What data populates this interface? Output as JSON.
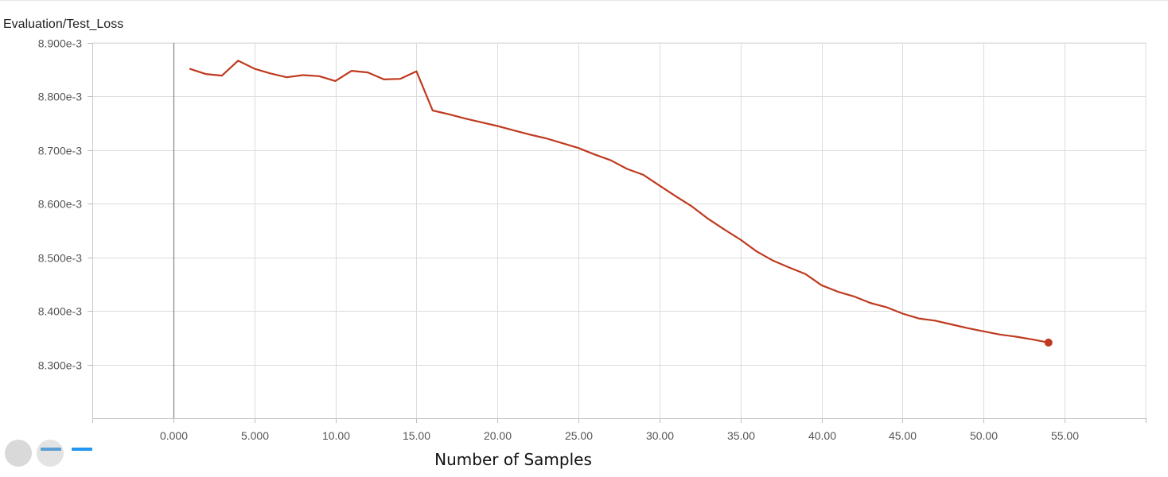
{
  "title": "Evaluation/Test_Loss",
  "chart_data": {
    "type": "line",
    "title": "Evaluation/Test_Loss",
    "xlabel": "Number of Samples",
    "ylabel": "",
    "xlim": [
      -5,
      60
    ],
    "ylim": [
      0.0082,
      0.0089
    ],
    "x_ticks": [
      0,
      5,
      10,
      15,
      20,
      25,
      30,
      35,
      40,
      45,
      50,
      55
    ],
    "x_tick_labels": [
      "0.000",
      "5.000",
      "10.00",
      "15.00",
      "20.00",
      "25.00",
      "30.00",
      "35.00",
      "40.00",
      "45.00",
      "50.00",
      "55.00"
    ],
    "y_ticks": [
      0.0083,
      0.0084,
      0.0085,
      0.0086,
      0.0087,
      0.0088,
      0.0089
    ],
    "y_tick_labels": [
      "8.300e-3",
      "8.400e-3",
      "8.500e-3",
      "8.600e-3",
      "8.700e-3",
      "8.800e-3",
      "8.900e-3"
    ],
    "grid": true,
    "line_color": "#bf3a1f",
    "series": [
      {
        "x": [
          1,
          2,
          3,
          4,
          5,
          6,
          7,
          8,
          9,
          10,
          11,
          12,
          13,
          14,
          15,
          16,
          17,
          18,
          19,
          20,
          21,
          22,
          23,
          24,
          25,
          26,
          27,
          28,
          29,
          30,
          31,
          32,
          33,
          34,
          35,
          36,
          37,
          38,
          39,
          40,
          41,
          42,
          43,
          44,
          45,
          46,
          47,
          48,
          49,
          50,
          51,
          52,
          53,
          54
        ],
        "values": [
          0.008852,
          0.008842,
          0.008839,
          0.008867,
          0.008852,
          0.008843,
          0.008836,
          0.00884,
          0.008838,
          0.008829,
          0.008848,
          0.008845,
          0.008832,
          0.008833,
          0.008847,
          0.008774,
          0.008767,
          0.008759,
          0.008752,
          0.008745,
          0.008737,
          0.008729,
          0.008722,
          0.008713,
          0.008704,
          0.008692,
          0.008681,
          0.008665,
          0.008654,
          0.008634,
          0.008614,
          0.008595,
          0.008572,
          0.008552,
          0.008533,
          0.008511,
          0.008494,
          0.008481,
          0.008469,
          0.008448,
          0.008436,
          0.008427,
          0.008415,
          0.008407,
          0.008395,
          0.008386,
          0.008382,
          0.008375,
          0.008368,
          0.008362,
          0.008356,
          0.008352,
          0.008347,
          0.008341
        ]
      }
    ]
  },
  "controls": {
    "icon_circle_1": "toggle-icon",
    "icon_circle_2": "toggle-icon",
    "icon_square_1": "expand-icon",
    "icon_square_2": "data-icon"
  }
}
